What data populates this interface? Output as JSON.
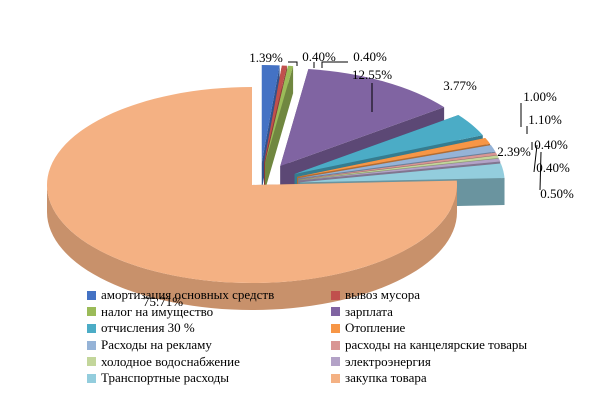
{
  "chart_data": {
    "type": "pie",
    "title": "",
    "categories": [
      "амортизация основных средств",
      "вывоз мусора",
      "налог на имущество",
      "зарплата",
      "отчисления 30 %",
      "Отопление",
      "Расходы на рекламу",
      "расходы на канцелярские товары",
      "холодное водоснабжение",
      "электроэнергия",
      "Транспортные расходы",
      "закупка товара"
    ],
    "values": [
      1.39,
      0.4,
      0.4,
      12.55,
      3.77,
      1.0,
      1.1,
      0.4,
      0.4,
      0.5,
      2.39,
      75.71
    ],
    "data_labels": [
      "1.39%",
      "0.40%",
      "0.40%",
      "12.55%",
      "3.77%",
      "1.00%",
      "1.10%",
      "0.40%",
      "0.40%",
      "0.50%",
      "2.39%",
      "75.71%"
    ],
    "colors": [
      "#4472C4",
      "#C0504D",
      "#9BBB59",
      "#8064A2",
      "#4BACC6",
      "#F79646",
      "#95B3D7",
      "#D99694",
      "#C3D69B",
      "#B3A2C7",
      "#93CDDD",
      "#F4B183"
    ],
    "style": "3d-exploded",
    "legend_position": "bottom"
  }
}
